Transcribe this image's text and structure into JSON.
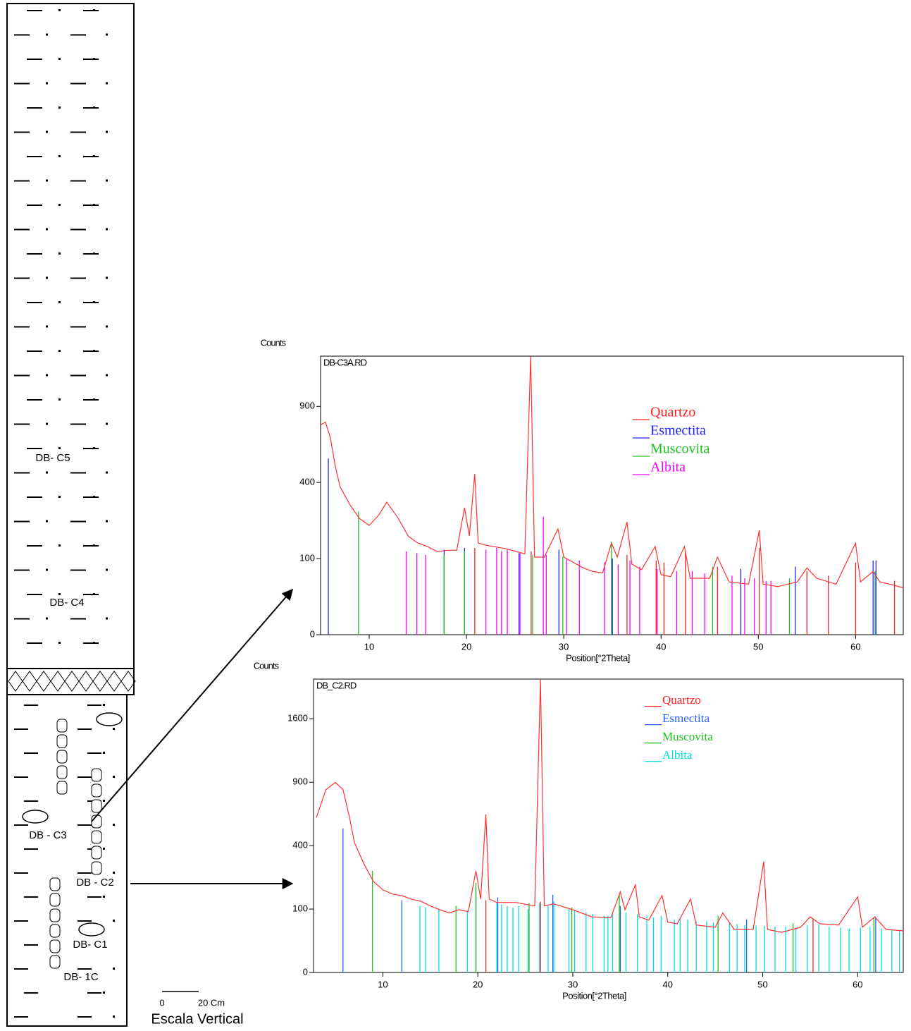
{
  "column": {
    "labels": [
      "DB- C5",
      "DB- C4",
      "DB - C3",
      "DB - C2",
      "DB- C1",
      "DB- 1C"
    ],
    "scale": {
      "ticks": [
        "0",
        "20 Cm"
      ],
      "title": "Escala Vertical"
    }
  },
  "chart_data": [
    {
      "type": "line",
      "title": "DB-C3A.RD",
      "ylabel": "Counts",
      "xlabel": "Position[°2Theta]",
      "yscale": "sqrt",
      "xlim": [
        5,
        64.9
      ],
      "ylim": [
        0,
        1340
      ],
      "xticks": [
        10,
        20,
        30,
        40,
        50,
        60
      ],
      "yticks": [
        0,
        100,
        400,
        900
      ],
      "scan": {
        "color": "#ff3030",
        "x": [
          5,
          5.5,
          6,
          6.5,
          7,
          8,
          9,
          10,
          11,
          11.8,
          13,
          14,
          15,
          16,
          17,
          18,
          19,
          19.8,
          20.3,
          20.85,
          21.2,
          22,
          24,
          26,
          26.6,
          27,
          28,
          29.4,
          30,
          32,
          33,
          34,
          34.9,
          35.5,
          36.5,
          37,
          38,
          39.4,
          40,
          41,
          42.4,
          43,
          45,
          45.8,
          47,
          49,
          50.1,
          50.5,
          52,
          54,
          55,
          56,
          58,
          60,
          60.5,
          61.8,
          62.5,
          64,
          64.9
        ],
        "values": [
          760,
          780,
          672,
          494,
          378,
          293,
          233,
          206,
          248,
          303,
          233,
          168,
          145,
          134,
          119,
          123,
          123,
          278,
          168,
          446,
          145,
          138,
          128,
          113,
          1338,
          104,
          104,
          193,
          104,
          77,
          69,
          66,
          145,
          104,
          219,
          86,
          73,
          134,
          62,
          58,
          134,
          55,
          55,
          104,
          48,
          44,
          188,
          44,
          40,
          48,
          77,
          55,
          44,
          145,
          48,
          69,
          48,
          42,
          38
        ]
      },
      "series": [
        {
          "name": "Quartzo",
          "color": "#ff2020",
          "x": [
            20.85,
            26.65,
            36.5,
            39.5,
            40.3,
            42.5,
            45.8,
            50.1,
            55,
            57.2,
            60,
            64
          ],
          "values": [
            130,
            120,
            110,
            95,
            90,
            120,
            80,
            130,
            70,
            60,
            90,
            50
          ]
        },
        {
          "name": "Esmectita",
          "color": "#2020ff",
          "x": [
            5.8,
            17.7,
            19.8,
            25.4,
            29.5,
            35,
            48.2,
            53.8,
            61.8,
            62.1
          ],
          "values": [
            536,
            125,
            130,
            115,
            125,
            100,
            75,
            80,
            95,
            95
          ]
        },
        {
          "name": "Muscovita",
          "color": "#20c020",
          "x": [
            8.9,
            17.7,
            19.8,
            26.8,
            29.9,
            34.9,
            45.3,
            53.2,
            62
          ],
          "values": [
            262,
            110,
            120,
            110,
            105,
            150,
            80,
            55,
            70
          ]
        },
        {
          "name": "Albita",
          "color": "#ff00ff",
          "x": [
            13.8,
            14.9,
            15.8,
            22,
            23.1,
            23.6,
            24.2,
            25.5,
            27.9,
            28.2,
            30.3,
            31.6,
            34.2,
            35.6,
            36.8,
            37.8,
            39.6,
            41.6,
            43.2,
            44.5,
            47.3,
            48.6,
            49.6,
            50.8,
            51.3
          ],
          "values": [
            120,
            115,
            110,
            125,
            130,
            120,
            125,
            115,
            240,
            110,
            100,
            95,
            90,
            85,
            95,
            80,
            75,
            70,
            70,
            65,
            60,
            55,
            55,
            50,
            50
          ]
        }
      ]
    },
    {
      "type": "line",
      "title": "DB_C2.RD",
      "ylabel": "Counts",
      "xlabel": "Position[°2Theta]",
      "yscale": "sqrt",
      "xlim": [
        2.7,
        64.8
      ],
      "ylim": [
        0,
        2140
      ],
      "xticks": [
        10,
        20,
        30,
        40,
        50,
        60
      ],
      "yticks": [
        0,
        100,
        400,
        900,
        1600
      ],
      "scan": {
        "color": "#ff3030",
        "x": [
          3,
          4,
          5,
          5.8,
          6.5,
          7,
          8,
          9,
          10,
          11,
          12,
          13,
          14,
          15,
          16,
          17,
          18,
          19,
          19.8,
          20.3,
          20.85,
          21.2,
          22,
          24,
          26,
          26.6,
          27,
          28,
          30,
          32,
          34,
          35,
          35.5,
          36.6,
          37,
          38,
          39.4,
          40,
          41,
          42.4,
          43,
          45,
          45.8,
          47,
          49,
          50.1,
          50.5,
          52,
          54,
          55,
          56,
          58,
          60,
          60.5,
          61.8,
          63,
          64.8
        ],
        "values": [
          595,
          832,
          897,
          832,
          595,
          420,
          294,
          206,
          170,
          153,
          147,
          134,
          126,
          110,
          98,
          88,
          98,
          92,
          257,
          134,
          622,
          134,
          122,
          122,
          110,
          2140,
          110,
          117,
          98,
          77,
          74,
          161,
          98,
          191,
          77,
          68,
          147,
          63,
          59,
          134,
          56,
          51,
          88,
          46,
          46,
          306,
          46,
          40,
          51,
          77,
          59,
          56,
          142,
          51,
          77,
          46,
          43
        ]
      },
      "series": [
        {
          "name": "Quartzo",
          "color": "#ff2020",
          "x": [
            20.85,
            26.6,
            55.3
          ],
          "values": [
            130,
            125,
            70
          ]
        },
        {
          "name": "Esmectita",
          "color": "#2060ff",
          "x": [
            5.8,
            12,
            19.8,
            22.1,
            27.9,
            35,
            48.3,
            61.9
          ],
          "values": [
            516,
            130,
            180,
            140,
            150,
            110,
            70,
            75
          ]
        },
        {
          "name": "Muscovita",
          "color": "#20c020",
          "x": [
            8.9,
            17.7,
            19.8,
            25.4,
            29.9,
            34.9,
            45.3,
            53.2,
            61.7
          ],
          "values": [
            257,
            110,
            200,
            120,
            105,
            150,
            80,
            60,
            75
          ]
        },
        {
          "name": "Albita",
          "color": "#00e0e0",
          "x": [
            13.9,
            14.5,
            15.9,
            18.9,
            22,
            22.5,
            23.1,
            23.7,
            24.3,
            25.3,
            26.5,
            27.4,
            28,
            29.6,
            30.2,
            31.4,
            32.1,
            33.3,
            33.7,
            34.2,
            35.6,
            36.8,
            37.8,
            38.5,
            39.3,
            40.7,
            41.3,
            42.1,
            43,
            44.1,
            44.8,
            46.5,
            47.3,
            48.1,
            49.3,
            50.2,
            51.3,
            52.4,
            53.5,
            54.7,
            55.9,
            57,
            58.2,
            59.1,
            60.3,
            61.3,
            62.5,
            63.6,
            64.4
          ],
          "values": [
            110,
            105,
            100,
            95,
            120,
            115,
            110,
            105,
            110,
            100,
            120,
            110,
            125,
            100,
            95,
            90,
            85,
            80,
            80,
            85,
            90,
            85,
            80,
            75,
            80,
            70,
            72,
            70,
            65,
            65,
            62,
            60,
            58,
            56,
            55,
            54,
            52,
            52,
            50,
            55,
            58,
            52,
            50,
            48,
            50,
            52,
            48,
            46,
            45
          ]
        }
      ]
    }
  ]
}
